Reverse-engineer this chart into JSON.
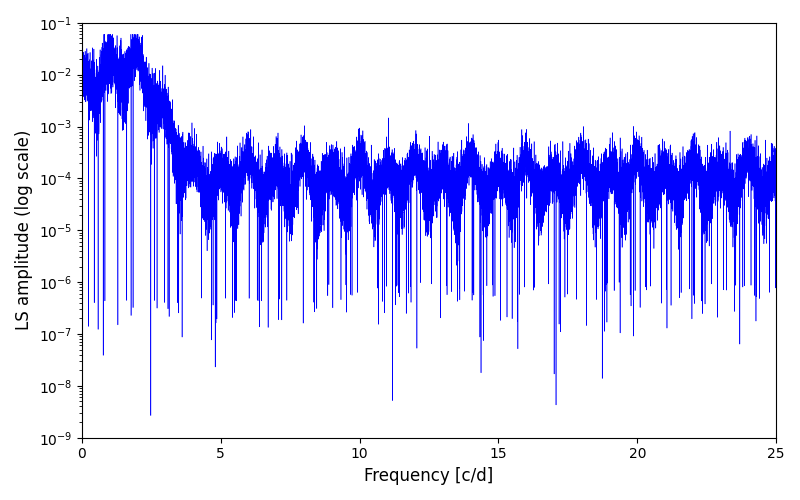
{
  "title": "",
  "xlabel": "Frequency [c/d]",
  "ylabel": "LS amplitude (log scale)",
  "xlim": [
    0,
    25
  ],
  "ylim": [
    1e-09,
    0.1
  ],
  "line_color": "blue",
  "background_color": "#ffffff",
  "freq_min": 0.0,
  "freq_max": 25.0,
  "n_points": 15000,
  "seed": 42,
  "figsize": [
    8.0,
    5.0
  ],
  "dpi": 100
}
